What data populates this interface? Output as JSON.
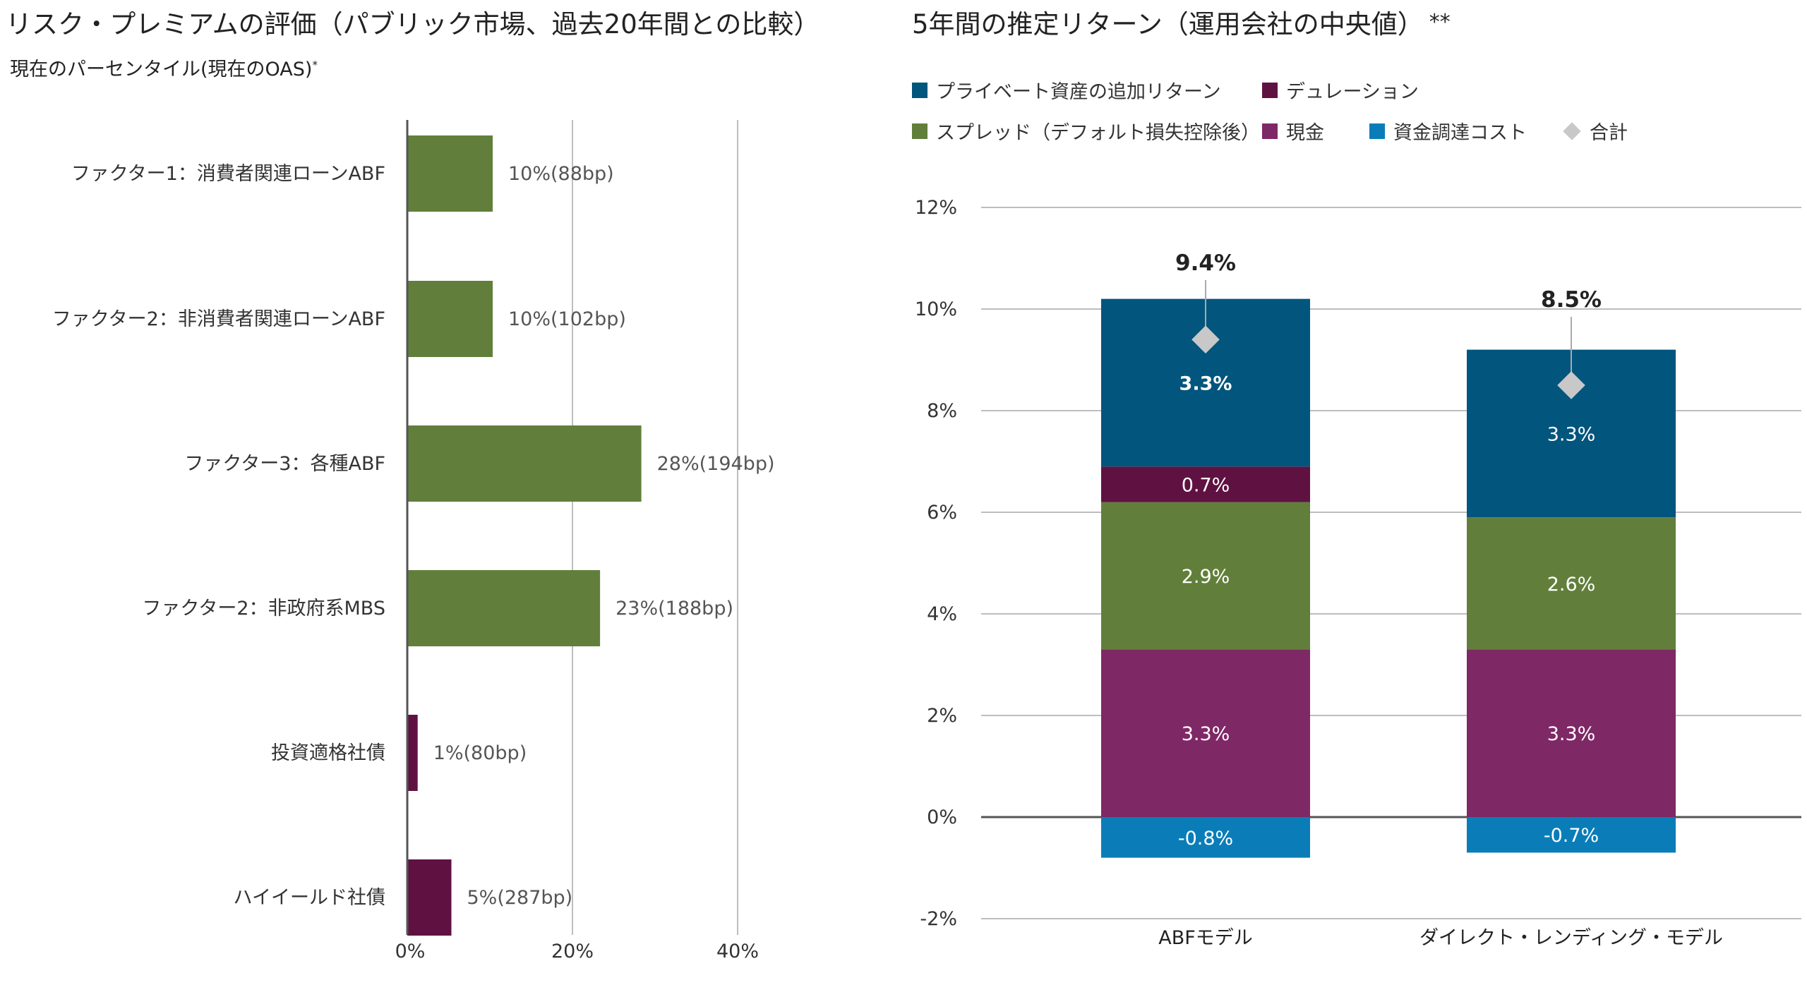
{
  "left": {
    "title": "リスク・プレミアムの評価（パブリック市場、過去20年間との比較）",
    "subtitle": "現在のパーセンタイル(現在のOAS)",
    "subtitle_sup": "*"
  },
  "right": {
    "title": "5年間の推定リターン（運用会社の中央値）",
    "title_sup": "**"
  },
  "chart_data": [
    {
      "type": "bar",
      "orientation": "horizontal",
      "categories": [
        "ファクター1：消費者関連ローンABF",
        "ファクター2：非消費者関連ローンABF",
        "ファクター3：各種ABF",
        "ファクター2：非政府系MBS",
        "投資適格社債",
        "ハイイールド社債"
      ],
      "values": [
        10,
        10,
        28,
        23,
        1,
        5
      ],
      "value_labels": [
        "10%(88bp)",
        "10%(102bp)",
        "28%(194bp)",
        "23%(188bp)",
        "1%(80bp)",
        "5%(287bp)"
      ],
      "bar_colors": [
        "#617f3b",
        "#617f3b",
        "#617f3b",
        "#617f3b",
        "#5f1242",
        "#5f1242"
      ],
      "xlim": [
        0,
        40
      ],
      "xticks": [
        0,
        20,
        40
      ],
      "xtick_labels": [
        "0%",
        "20%",
        "40%"
      ],
      "grid": true
    },
    {
      "type": "bar",
      "stacked": true,
      "categories": [
        "ABFモデル",
        "ダイレクト・レンディング・モデル"
      ],
      "series": [
        {
          "name": "現金",
          "color": "#7f2866",
          "values": [
            3.3,
            3.3
          ],
          "labels": [
            "3.3%",
            "3.3%"
          ]
        },
        {
          "name": "スプレッド（デフォルト損失控除後）",
          "color": "#617f3b",
          "values": [
            2.9,
            2.6
          ],
          "labels": [
            "2.9%",
            "2.6%"
          ]
        },
        {
          "name": "デュレーション",
          "color": "#5f1242",
          "values": [
            0.7,
            0
          ],
          "labels": [
            "0.7%",
            ""
          ]
        },
        {
          "name": "プライベート資産の追加リターン",
          "color": "#02557d",
          "values": [
            3.3,
            3.3
          ],
          "labels": [
            "3.3%",
            "3.3%"
          ]
        },
        {
          "name": "資金調達コスト",
          "color": "#0a7db8",
          "values": [
            -0.8,
            -0.7
          ],
          "labels": [
            "-0.8%",
            "-0.7%"
          ]
        }
      ],
      "total": {
        "name": "合計",
        "color": "#c8c8c8",
        "values": [
          9.4,
          8.5
        ],
        "labels": [
          "9.4%",
          "8.5%"
        ]
      },
      "ylim": [
        -2,
        12
      ],
      "yticks": [
        -2,
        0,
        2,
        4,
        6,
        8,
        10,
        12
      ],
      "ytick_labels": [
        "-2%",
        "0%",
        "2%",
        "4%",
        "6%",
        "8%",
        "10%",
        "12%"
      ],
      "legend_order": [
        "プライベート資産の追加リターン",
        "デュレーション",
        "スプレッド（デフォルト損失控除後）",
        "現金",
        "資金調達コスト",
        "合計"
      ],
      "legend_position": "top",
      "grid": true
    }
  ]
}
